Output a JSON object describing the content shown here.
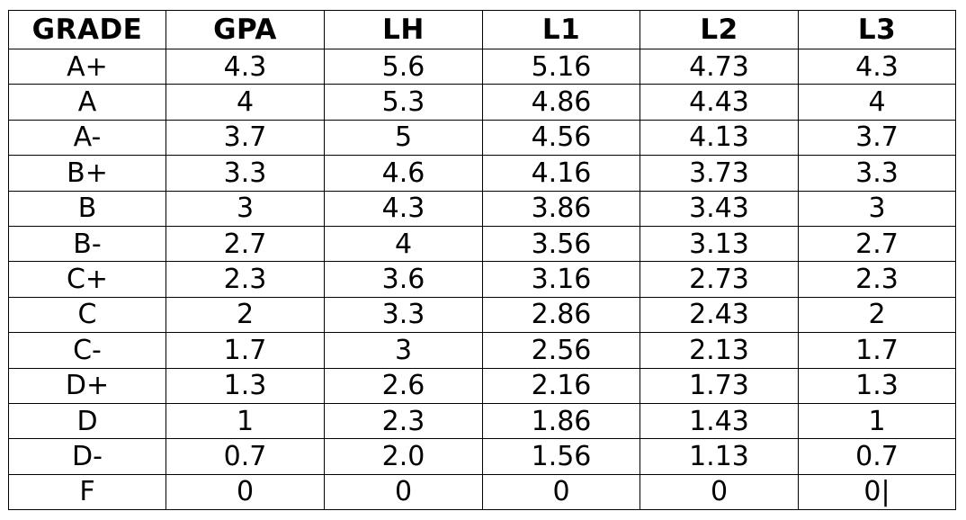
{
  "table": {
    "headers": [
      "GRADE",
      "GPA",
      "LH",
      "L1",
      "L2",
      "L3"
    ],
    "rows": [
      [
        "A+",
        "4.3",
        "5.6",
        "5.16",
        "4.73",
        "4.3"
      ],
      [
        "A",
        "4",
        "5.3",
        "4.86",
        "4.43",
        "4"
      ],
      [
        "A-",
        "3.7",
        "5",
        "4.56",
        "4.13",
        "3.7"
      ],
      [
        "B+",
        "3.3",
        "4.6",
        "4.16",
        "3.73",
        "3.3"
      ],
      [
        "B",
        "3",
        "4.3",
        "3.86",
        "3.43",
        "3"
      ],
      [
        "B-",
        "2.7",
        "4",
        "3.56",
        "3.13",
        "2.7"
      ],
      [
        "C+",
        "2.3",
        "3.6",
        "3.16",
        "2.73",
        "2.3"
      ],
      [
        "C",
        "2",
        "3.3",
        "2.86",
        "2.43",
        "2"
      ],
      [
        "C-",
        "1.7",
        "3",
        "2.56",
        "2.13",
        "1.7"
      ],
      [
        "D+",
        "1.3",
        "2.6",
        "2.16",
        "1.73",
        "1.3"
      ],
      [
        "D",
        "1",
        "2.3",
        "1.86",
        "1.43",
        "1"
      ],
      [
        "D-",
        "0.7",
        "2.0",
        "1.56",
        "1.13",
        "0.7"
      ],
      [
        "F",
        "0",
        "0",
        "0",
        "0",
        "0|"
      ]
    ]
  }
}
